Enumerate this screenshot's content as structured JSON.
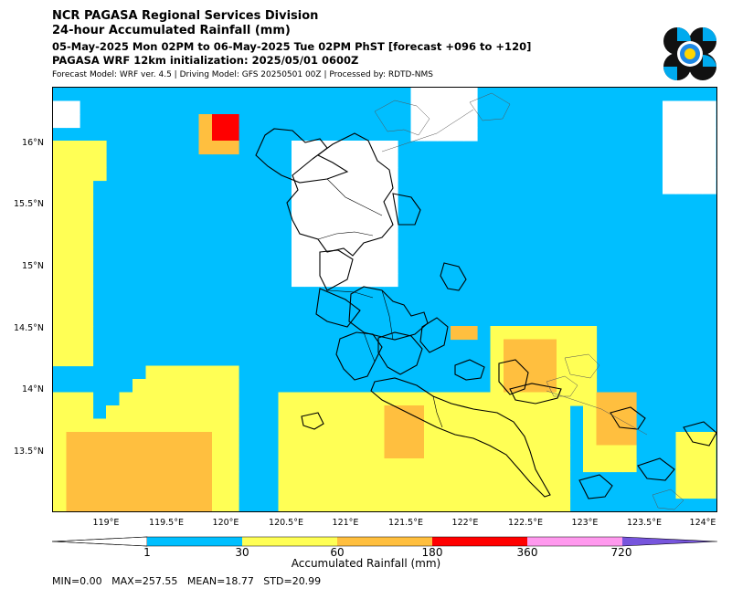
{
  "header": {
    "org": "NCR PAGASA Regional Services Division",
    "product": "24-hour Accumulated Rainfall (mm)",
    "period": "05-May-2025 Mon 02PM to 06-May-2025 Tue 02PM PhST [forecast +096 to +120]",
    "init": "PAGASA WRF 12km initialization: 2025/05/01 0600Z",
    "model_info": "Forecast Model: WRF ver. 4.5 | Driving Model: GFS 20250501 00Z | Processed by: RDTD-NMS"
  },
  "map": {
    "lat_labels": [
      "16°N",
      "15.5°N",
      "15°N",
      "14.5°N",
      "14°N",
      "13.5°N"
    ],
    "lon_labels": [
      "119°E",
      "119.5°E",
      "120°E",
      "120.5°E",
      "121°E",
      "121.5°E",
      "122°E",
      "122.5°E",
      "123°E",
      "123.5°E",
      "124°E"
    ],
    "lon_range": [
      118.55,
      124.1
    ],
    "lat_range": [
      13.02,
      16.48
    ]
  },
  "colorbar": {
    "title": "Accumulated Rainfall (mm)",
    "tick_labels": [
      "1",
      "30",
      "60",
      "180",
      "360",
      "720"
    ],
    "bins": [
      {
        "label": "<1",
        "color": "#ffffff"
      },
      {
        "label": "1-30",
        "color": "#00bfff"
      },
      {
        "label": "30-60",
        "color": "#ffff55"
      },
      {
        "label": "60-180",
        "color": "#ffbf3f"
      },
      {
        "label": "180-360",
        "color": "#ff0000"
      },
      {
        "label": "360-720",
        "color": "#ff99ee"
      },
      {
        "label": ">720",
        "color": "#7755dd"
      }
    ]
  },
  "stats": {
    "text": "MIN=0.00   MAX=257.55   MEAN=18.77   STD=20.99"
  }
}
